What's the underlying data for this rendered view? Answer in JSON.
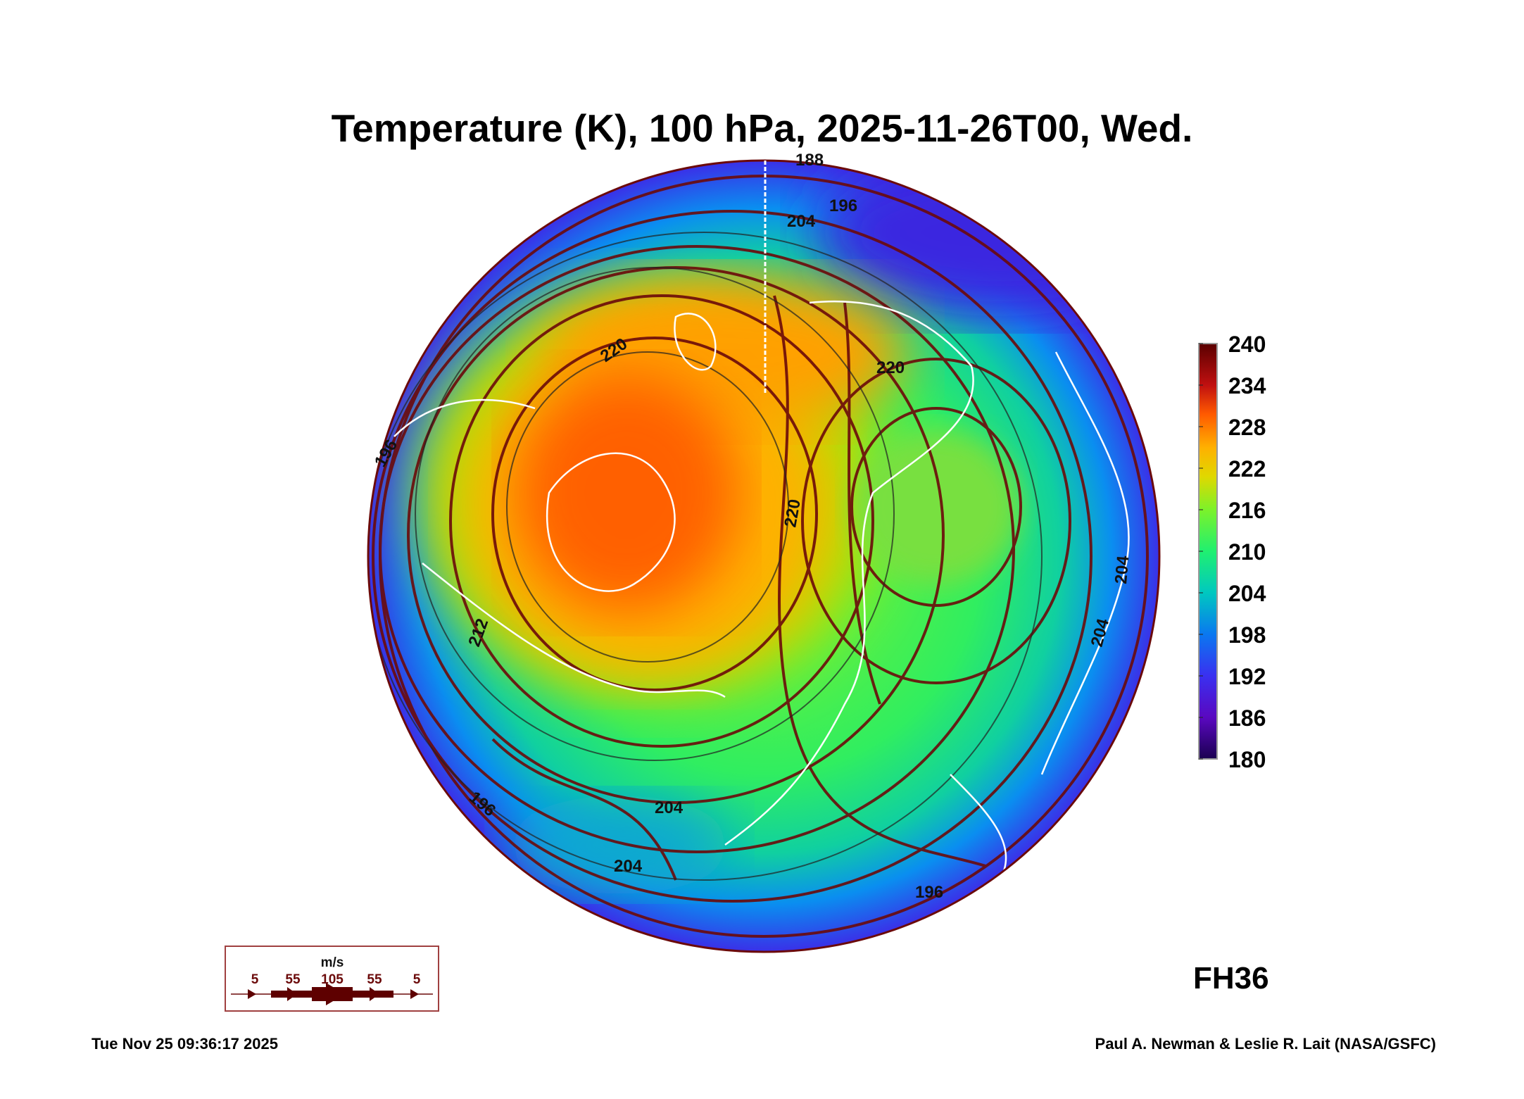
{
  "chart_data": {
    "type": "heatmap",
    "projection": "north polar stereographic",
    "title": "Temperature (K), 100 hPa, 2025-11-26T00, Wed.",
    "variable": "Temperature (K)",
    "level": "100 hPa",
    "colorbar": {
      "range": [
        180,
        240
      ],
      "ticks": [
        "240",
        "234",
        "228",
        "222",
        "216",
        "210",
        "204",
        "198",
        "192",
        "186",
        "180"
      ],
      "colors": [
        "#5a0000",
        "#a00010",
        "#e02a00",
        "#ff6a00",
        "#ffb000",
        "#c8e000",
        "#7cf22a",
        "#20f070",
        "#00c8c0",
        "#0a78f0",
        "#3a30f0",
        "#5a08c0",
        "#1a0050"
      ]
    },
    "contour_labels": [
      "188",
      "196",
      "204",
      "220",
      "220",
      "220",
      "196",
      "204",
      "204",
      "204",
      "196",
      "196",
      "204",
      "212"
    ],
    "wind_legend": {
      "unit": "m/s",
      "labels": [
        "5",
        "55",
        "105",
        "55",
        "5"
      ]
    },
    "forecast_hour": "FH36",
    "timestamp": "Tue Nov 25 09:36:17 2025",
    "credit": "Paul A. Newman & Leslie R. Lait (NASA/GSFC)"
  }
}
